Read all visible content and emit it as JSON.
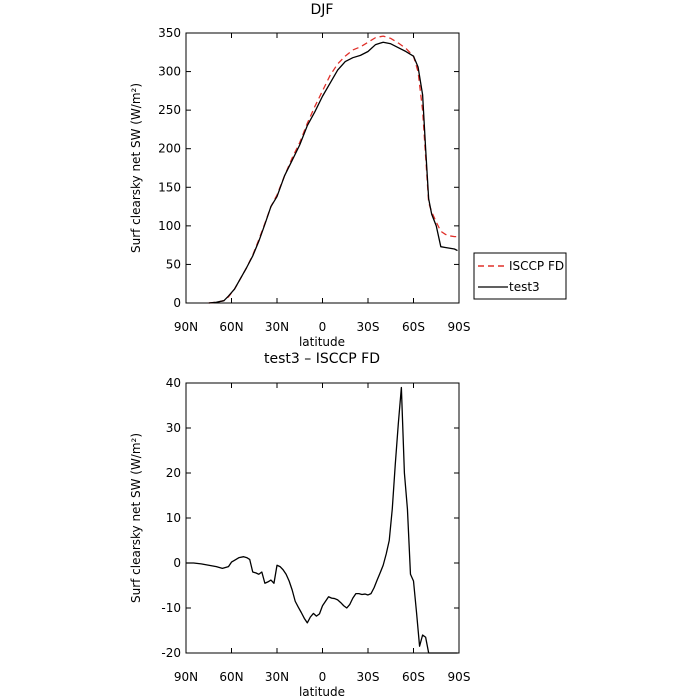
{
  "chart_data": [
    {
      "type": "line",
      "title": "DJF",
      "xlabel": "latitude",
      "ylabel": "Surf clearsky net SW (W/m²)",
      "xlim": [
        90,
        -90
      ],
      "ylim": [
        0,
        350
      ],
      "x_ticks": [
        {
          "value": 90,
          "label": "90N"
        },
        {
          "value": 60,
          "label": "60N"
        },
        {
          "value": 30,
          "label": "30N"
        },
        {
          "value": 0,
          "label": "0"
        },
        {
          "value": -30,
          "label": "30S"
        },
        {
          "value": -60,
          "label": "60S"
        },
        {
          "value": -90,
          "label": "90S"
        }
      ],
      "y_ticks": [
        0,
        50,
        100,
        150,
        200,
        250,
        300,
        350
      ],
      "legend": {
        "placement": "right",
        "entries": [
          "ISCCP FD",
          "test3"
        ]
      },
      "series": [
        {
          "name": "ISCCP FD",
          "color": "#e0302a",
          "dash": true,
          "x": [
            75,
            70,
            65,
            62,
            58,
            54,
            50,
            46,
            42,
            38,
            34,
            30,
            25,
            20,
            15,
            10,
            5,
            0,
            -5,
            -10,
            -15,
            -20,
            -25,
            -30,
            -35,
            -40,
            -45,
            -50,
            -55,
            -60,
            -63,
            -66,
            -68,
            -70,
            -72,
            -75,
            -78,
            -81,
            -84,
            -87,
            -89
          ],
          "y": [
            0,
            1,
            3,
            8,
            18,
            32,
            46,
            62,
            82,
            103,
            125,
            140,
            165,
            188,
            208,
            233,
            255,
            275,
            295,
            310,
            320,
            328,
            332,
            338,
            344,
            346,
            343,
            337,
            330,
            320,
            300,
            250,
            190,
            130,
            118,
            105,
            93,
            89,
            87,
            86,
            86
          ]
        },
        {
          "name": "test3",
          "color": "#000000",
          "dash": false,
          "x": [
            75,
            70,
            65,
            62,
            58,
            54,
            50,
            46,
            42,
            38,
            34,
            30,
            25,
            20,
            15,
            10,
            5,
            0,
            -5,
            -10,
            -15,
            -20,
            -25,
            -30,
            -35,
            -40,
            -45,
            -50,
            -55,
            -60,
            -63,
            -66,
            -68,
            -70,
            -72,
            -75,
            -78,
            -81,
            -84,
            -87,
            -89
          ],
          "y": [
            0,
            1,
            3,
            9,
            18,
            32,
            46,
            61,
            80,
            102,
            125,
            138,
            165,
            185,
            205,
            230,
            248,
            268,
            285,
            302,
            313,
            318,
            321,
            326,
            335,
            338,
            336,
            331,
            326,
            320,
            306,
            270,
            200,
            135,
            115,
            100,
            73,
            72,
            71,
            70,
            68
          ]
        }
      ]
    },
    {
      "type": "line",
      "title": "test3 – ISCCP FD",
      "xlabel": "latitude",
      "ylabel": "Surf clearsky net SW (W/m²)",
      "xlim": [
        90,
        -90
      ],
      "ylim": [
        -20,
        40
      ],
      "x_ticks": [
        {
          "value": 90,
          "label": "90N"
        },
        {
          "value": 60,
          "label": "60N"
        },
        {
          "value": 30,
          "label": "30N"
        },
        {
          "value": 0,
          "label": "0"
        },
        {
          "value": -30,
          "label": "30S"
        },
        {
          "value": -60,
          "label": "60S"
        },
        {
          "value": -90,
          "label": "90S"
        }
      ],
      "y_ticks": [
        -20,
        -10,
        0,
        10,
        20,
        30,
        40
      ],
      "series": [
        {
          "color": "#000000",
          "dash": false,
          "x": [
            90,
            85,
            80,
            75,
            70,
            66,
            62,
            60,
            58,
            55,
            52,
            50,
            48,
            46,
            44,
            42,
            40,
            38,
            36,
            34,
            32,
            30,
            28,
            26,
            24,
            22,
            20,
            18,
            16,
            14,
            12,
            10,
            8,
            6,
            4,
            2,
            0,
            -2,
            -4,
            -6,
            -8,
            -10,
            -12,
            -14,
            -16,
            -18,
            -20,
            -22,
            -24,
            -26,
            -28,
            -30,
            -32,
            -34,
            -36,
            -38,
            -40,
            -42,
            -44,
            -46,
            -48,
            -50,
            -52,
            -54,
            -56,
            -58,
            -60,
            -62,
            -64,
            -66,
            -68,
            -70,
            -72,
            -74,
            -76,
            -78,
            -80,
            -82,
            -84,
            -86,
            -88,
            -89
          ],
          "y": [
            0,
            0,
            -0.2,
            -0.5,
            -0.8,
            -1.2,
            -0.8,
            0.2,
            0.6,
            1.2,
            1.4,
            1.2,
            0.8,
            -2,
            -2.2,
            -2.5,
            -2.0,
            -4.5,
            -4.2,
            -3.8,
            -4.5,
            -0.5,
            -0.8,
            -1.5,
            -2.5,
            -4,
            -6,
            -8.5,
            -9.8,
            -11,
            -12.3,
            -13.3,
            -12,
            -11.2,
            -11.8,
            -11.3,
            -9.5,
            -8.5,
            -7.5,
            -7.8,
            -7.9,
            -8.2,
            -8.8,
            -9.5,
            -10,
            -9.2,
            -7.8,
            -6.8,
            -6.8,
            -7.0,
            -6.9,
            -7.1,
            -6.8,
            -5.5,
            -3.8,
            -2.2,
            -0.5,
            2.0,
            5.0,
            12.0,
            22.0,
            31.0,
            39.0,
            20.0,
            12.0,
            -2.5,
            -4.0,
            -11.0,
            -18.5,
            -16.0,
            -16.5,
            -20.0,
            -20.0,
            -20.0,
            -20.0,
            -20.0,
            -20.0,
            -20.0,
            -20.0,
            -20.0,
            -20.0,
            -20.0
          ],
          "clip_x_min": -90
        }
      ]
    }
  ]
}
